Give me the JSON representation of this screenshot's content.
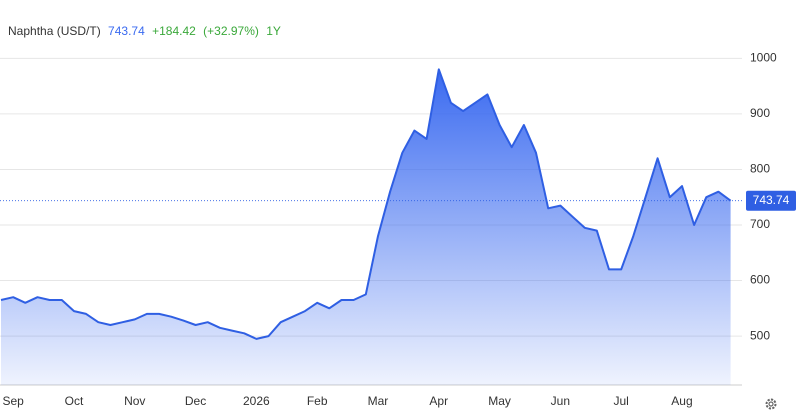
{
  "chart_data": {
    "type": "area",
    "title": "Naphtha (USD/T)",
    "change": "+184.42",
    "change_pct": "(+32.97%)",
    "period": "1Y",
    "categories": [
      null,
      "Sep",
      null,
      null,
      null,
      null,
      "Oct",
      null,
      null,
      null,
      null,
      "Nov",
      null,
      null,
      null,
      null,
      "Dec",
      null,
      null,
      null,
      null,
      "2026",
      null,
      null,
      null,
      null,
      "Feb",
      null,
      null,
      null,
      null,
      "Mar",
      null,
      null,
      null,
      null,
      "Apr",
      null,
      null,
      null,
      null,
      "May",
      null,
      null,
      null,
      null,
      "Jun",
      null,
      null,
      null,
      null,
      "Jul",
      null,
      null,
      null,
      null,
      "Aug",
      null,
      null,
      null,
      null
    ],
    "series": [
      {
        "name": "Naphtha (USD/T)",
        "color": "#2f5fe3",
        "values": [
          565,
          570,
          560,
          570,
          565,
          565,
          545,
          540,
          525,
          520,
          525,
          530,
          540,
          540,
          535,
          528,
          520,
          525,
          515,
          510,
          505,
          495,
          500,
          525,
          535,
          545,
          560,
          550,
          565,
          565,
          575,
          680,
          760,
          830,
          870,
          855,
          980,
          920,
          905,
          920,
          935,
          880,
          840,
          880,
          830,
          730,
          735,
          715,
          695,
          690,
          620,
          620,
          680,
          750,
          820,
          750,
          770,
          700,
          750,
          760,
          743.74
        ]
      }
    ],
    "ylim": [
      412,
      1033
    ],
    "yticks": [
      500,
      600,
      700,
      800,
      900,
      1000
    ],
    "grid": true
  }
}
